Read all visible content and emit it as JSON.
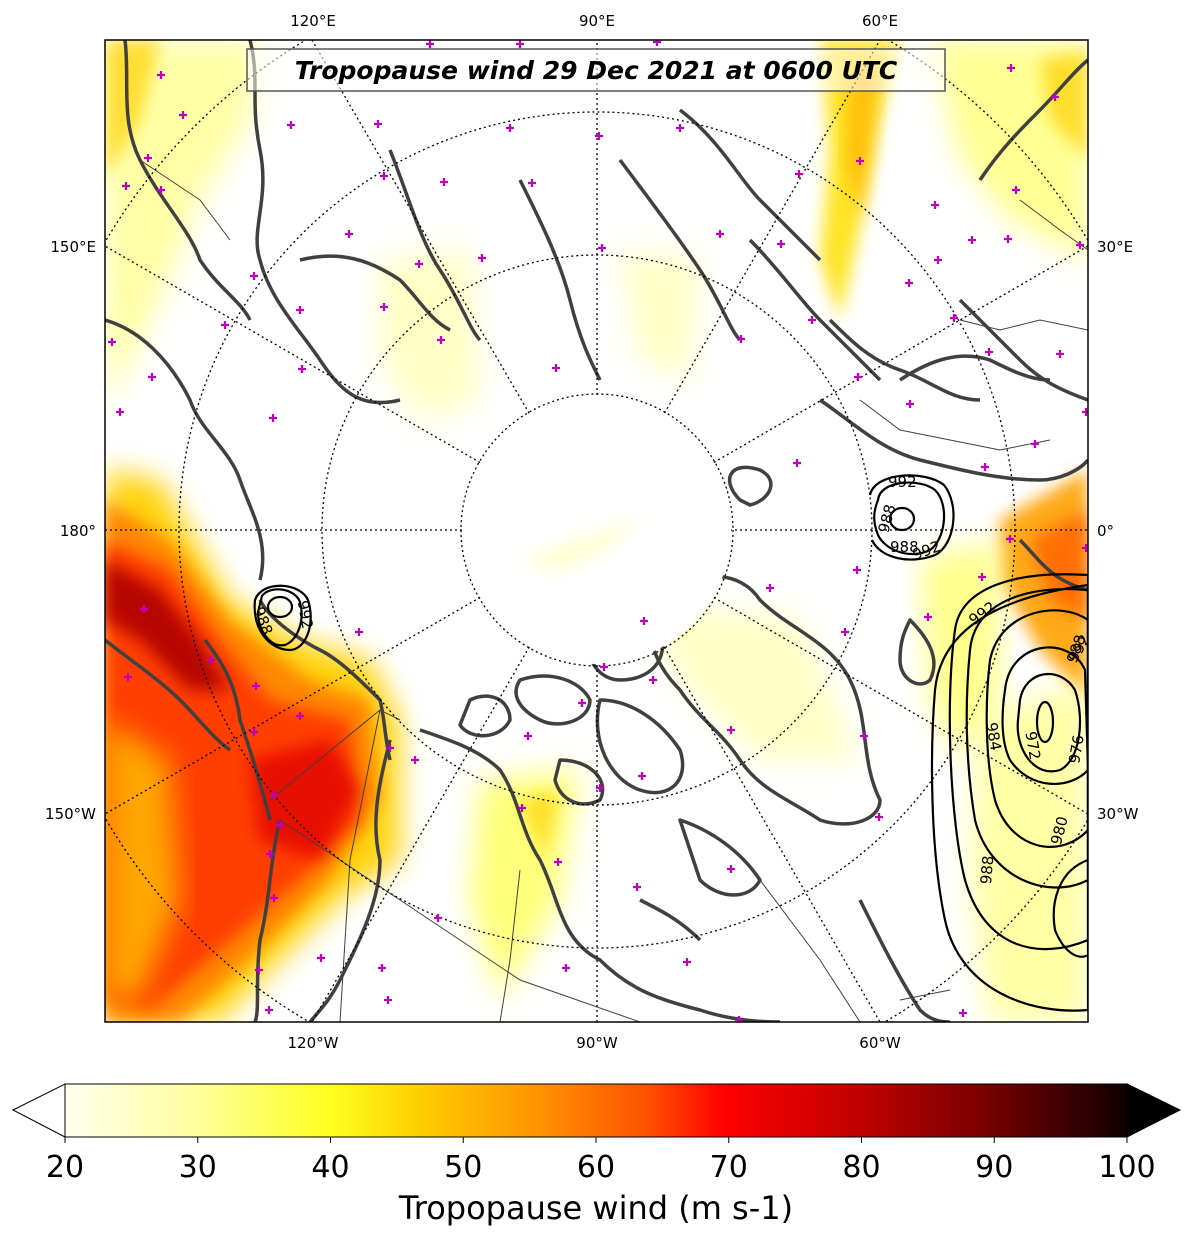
{
  "title": "Tropopause wind 29 Dec 2021 at 0600 UTC",
  "colorbar": {
    "label": "Tropopause wind (m s-1)",
    "ticks": [
      "20",
      "30",
      "40",
      "50",
      "60",
      "70",
      "80",
      "90",
      "100"
    ],
    "min": 20,
    "max": 100,
    "extend": "both",
    "colormap": "hot_r"
  },
  "lon_labels": {
    "top": [
      "120°E",
      "90°E",
      "60°E"
    ],
    "bottom": [
      "120°W",
      "90°W",
      "60°W"
    ],
    "left": [
      "150°E",
      "180°",
      "150°W"
    ],
    "right": [
      "30°E",
      "0°",
      "30°W"
    ]
  },
  "contour_labels": [
    "992",
    "988",
    "988",
    "992",
    "992",
    "988",
    "992",
    "992",
    "988",
    "984",
    "972",
    "976",
    "980",
    "988"
  ],
  "projection": "north-polar-stereographic",
  "colors": {
    "coastline": "#404040",
    "stations": "#c000c0",
    "contours": "#000000",
    "grid": "#000000"
  }
}
